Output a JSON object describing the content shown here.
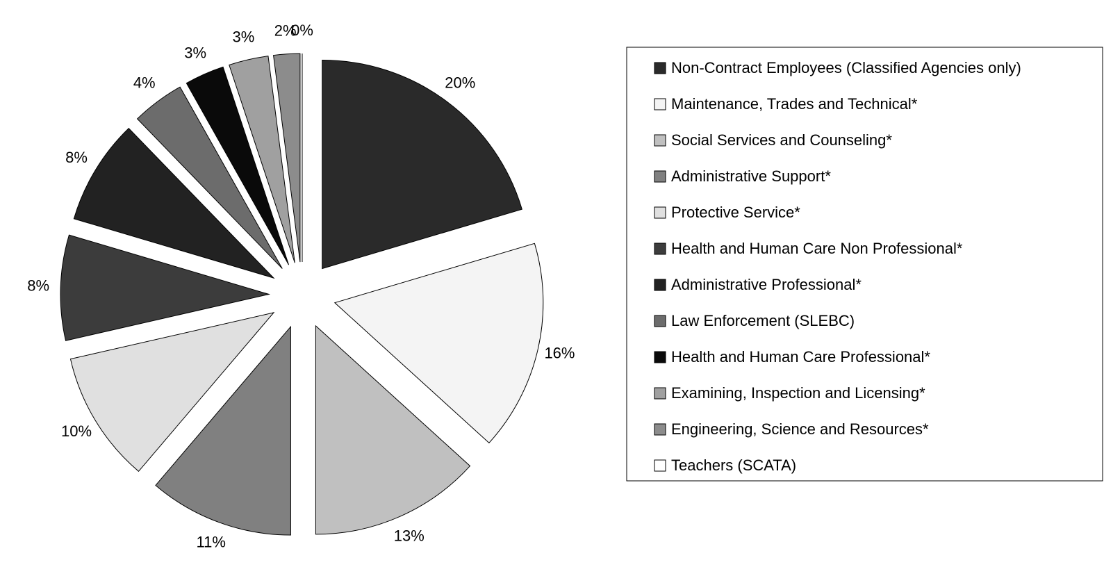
{
  "chart_data": {
    "type": "pie",
    "categories": [
      "Non-Contract Employees  (Classified Agencies only)",
      "Maintenance, Trades and Technical*",
      "Social Services and Counseling*",
      "Administrative Support*",
      "Protective Service*",
      "Health and Human Care Non Professional*",
      "Administrative Professional*",
      "Law Enforcement (SLEBC)",
      "Health and Human Care Professional*",
      "Examining, Inspection and Licensing*",
      "Engineering, Science and Resources*",
      "Teachers (SCATA)"
    ],
    "values": [
      20,
      16,
      13,
      11,
      10,
      8,
      8,
      4,
      3,
      3,
      2,
      0
    ],
    "value_labels": [
      "20%",
      "16%",
      "13%",
      "11%",
      "10%",
      "8%",
      "8%",
      "4%",
      "3%",
      "3%",
      "2%",
      "0%"
    ],
    "colors": [
      "#2a2a2a",
      "#f4f4f4",
      "#c0c0c0",
      "#808080",
      "#e0e0e0",
      "#3c3c3c",
      "#222222",
      "#6c6c6c",
      "#0a0a0a",
      "#a0a0a0",
      "#8c8c8c",
      "#ffffff"
    ],
    "legend": "right"
  }
}
